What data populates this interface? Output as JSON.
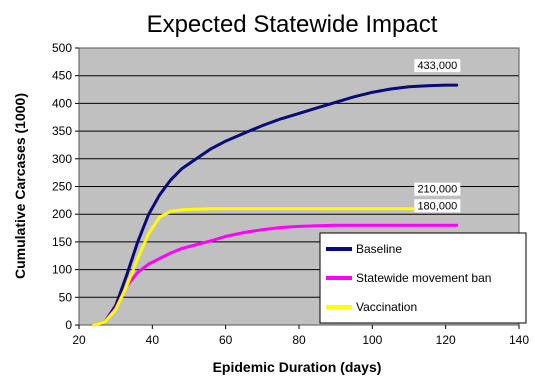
{
  "chart_data": {
    "type": "line",
    "title": "Expected Statewide Impact",
    "xlabel": "Epidemic Duration (days)",
    "ylabel": "Cumulative Carcases (1000)",
    "xlim": [
      20,
      140
    ],
    "ylim": [
      0,
      500
    ],
    "xticks": [
      20,
      40,
      60,
      80,
      100,
      120,
      140
    ],
    "yticks": [
      0,
      50,
      100,
      150,
      200,
      250,
      300,
      350,
      400,
      450,
      500
    ],
    "grid": true,
    "legend_position": "bottom-right",
    "series": [
      {
        "name": "Baseline",
        "color": "#0a0a78",
        "x": [
          24,
          27,
          30,
          33,
          36,
          39,
          42,
          45,
          48,
          52,
          56,
          60,
          65,
          70,
          75,
          80,
          85,
          90,
          95,
          100,
          105,
          110,
          115,
          120,
          123
        ],
        "values": [
          0,
          5,
          35,
          90,
          150,
          200,
          235,
          262,
          282,
          300,
          318,
          332,
          346,
          360,
          372,
          382,
          392,
          402,
          412,
          420,
          426,
          430,
          432,
          433,
          433
        ]
      },
      {
        "name": "Statewide movement ban",
        "color": "#ff00ff",
        "x": [
          24,
          27,
          30,
          33,
          36,
          39,
          42,
          45,
          48,
          52,
          56,
          60,
          65,
          70,
          75,
          80,
          85,
          90,
          95,
          100,
          105,
          110,
          115,
          120,
          123
        ],
        "values": [
          0,
          5,
          30,
          70,
          95,
          110,
          120,
          130,
          138,
          145,
          152,
          160,
          167,
          172,
          176,
          178,
          179,
          180,
          180,
          180,
          180,
          180,
          180,
          180,
          180
        ]
      },
      {
        "name": "Vaccination",
        "color": "#ffff00",
        "x": [
          24,
          27,
          30,
          33,
          36,
          39,
          42,
          45,
          48,
          52,
          56,
          60,
          65,
          70,
          75,
          80,
          85,
          90,
          95,
          100,
          105,
          110,
          115,
          120,
          123
        ],
        "values": [
          0,
          5,
          28,
          70,
          120,
          165,
          195,
          205,
          208,
          209,
          210,
          210,
          210,
          210,
          210,
          210,
          210,
          210,
          210,
          210,
          210,
          210,
          210,
          210,
          210
        ]
      }
    ],
    "annotations": [
      {
        "text": "433,000",
        "x": 121,
        "y": 433
      },
      {
        "text": "210,000",
        "x": 121,
        "y": 210
      },
      {
        "text": "180,000",
        "x": 121,
        "y": 180
      }
    ]
  }
}
